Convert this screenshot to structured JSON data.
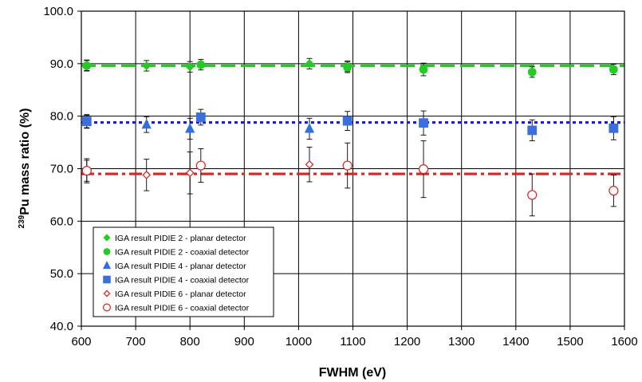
{
  "chart_data": {
    "type": "scatter",
    "title": "",
    "xlabel": "FWHM (eV)",
    "ylabel_prefix": "239",
    "ylabel": "Pu mass ratio (%)",
    "xlim": [
      600,
      1600
    ],
    "ylim": [
      40,
      100
    ],
    "x_ticks": [
      "600",
      "700",
      "800",
      "900",
      "1000",
      "1100",
      "1200",
      "1300",
      "1400",
      "1500",
      "1600"
    ],
    "y_ticks": [
      "40.0",
      "50.0",
      "60.0",
      "70.0",
      "80.0",
      "90.0",
      "100.0"
    ],
    "grid": true,
    "legend_position": "bottom-left",
    "reference_lines": [
      {
        "y": 89.6,
        "color": "#22cc22",
        "style": "dashed"
      },
      {
        "y": 78.8,
        "color": "#1a1aee",
        "style": "dotted"
      },
      {
        "y": 69.0,
        "color": "#dd2222",
        "style": "dash-dot"
      }
    ],
    "series": [
      {
        "name": "IGA result PIDIE 2 - planar detector",
        "marker": "diamond",
        "filled": true,
        "color": "#22cc22",
        "points": [
          {
            "x": 610,
            "y": 89.7,
            "err": 1.0
          },
          {
            "x": 720,
            "y": 89.6,
            "err": 1.0
          },
          {
            "x": 800,
            "y": 89.4,
            "err": 1.0
          },
          {
            "x": 1020,
            "y": 90.0,
            "err": 1.0
          },
          {
            "x": 1090,
            "y": 89.5,
            "err": 1.0
          }
        ]
      },
      {
        "name": "IGA result PIDIE 2 - coaxial detector",
        "marker": "circle",
        "filled": true,
        "color": "#22cc22",
        "points": [
          {
            "x": 610,
            "y": 89.6,
            "err": 1.0
          },
          {
            "x": 820,
            "y": 89.8,
            "err": 1.0
          },
          {
            "x": 1090,
            "y": 89.3,
            "err": 1.0
          },
          {
            "x": 1230,
            "y": 88.9,
            "err": 1.2
          },
          {
            "x": 1430,
            "y": 88.4,
            "err": 1.0
          },
          {
            "x": 1580,
            "y": 88.9,
            "err": 1.0
          }
        ]
      },
      {
        "name": "IGA result PIDIE 4 - planar detector",
        "marker": "triangle",
        "filled": true,
        "color": "#2f6fe4",
        "points": [
          {
            "x": 610,
            "y": 79.0,
            "err": 1.3
          },
          {
            "x": 720,
            "y": 78.4,
            "err": 1.5
          },
          {
            "x": 800,
            "y": 77.6,
            "err": 2.0
          },
          {
            "x": 1020,
            "y": 77.6,
            "err": 2.0
          }
        ]
      },
      {
        "name": "IGA result PIDIE 4 - coaxial detector",
        "marker": "square",
        "filled": true,
        "color": "#3a6fe0",
        "points": [
          {
            "x": 610,
            "y": 79.0,
            "err": 1.2
          },
          {
            "x": 820,
            "y": 79.8,
            "err": 1.5
          },
          {
            "x": 1090,
            "y": 79.1,
            "err": 1.8
          },
          {
            "x": 1230,
            "y": 78.7,
            "err": 2.3
          },
          {
            "x": 1430,
            "y": 77.3,
            "err": 2.0
          },
          {
            "x": 1580,
            "y": 77.7,
            "err": 2.2
          }
        ]
      },
      {
        "name": "IGA result PIDIE 6 - planar detector",
        "marker": "diamond",
        "filled": false,
        "color": "#dd2222",
        "points": [
          {
            "x": 610,
            "y": 69.6,
            "err": 2.0
          },
          {
            "x": 720,
            "y": 68.8,
            "err": 3.0
          },
          {
            "x": 800,
            "y": 69.2,
            "err": 4.0
          },
          {
            "x": 1020,
            "y": 70.8,
            "err": 3.3
          }
        ]
      },
      {
        "name": "IGA result PIDIE 6 - coaxial detector",
        "marker": "circle",
        "filled": false,
        "color": "#dd2222",
        "points": [
          {
            "x": 610,
            "y": 69.6,
            "err": 2.3
          },
          {
            "x": 820,
            "y": 70.6,
            "err": 3.2
          },
          {
            "x": 1090,
            "y": 70.6,
            "err": 4.3
          },
          {
            "x": 1230,
            "y": 69.9,
            "err": 5.4
          },
          {
            "x": 1430,
            "y": 65.0,
            "err": 4.0
          },
          {
            "x": 1580,
            "y": 65.8,
            "err": 3.0
          }
        ]
      }
    ]
  }
}
